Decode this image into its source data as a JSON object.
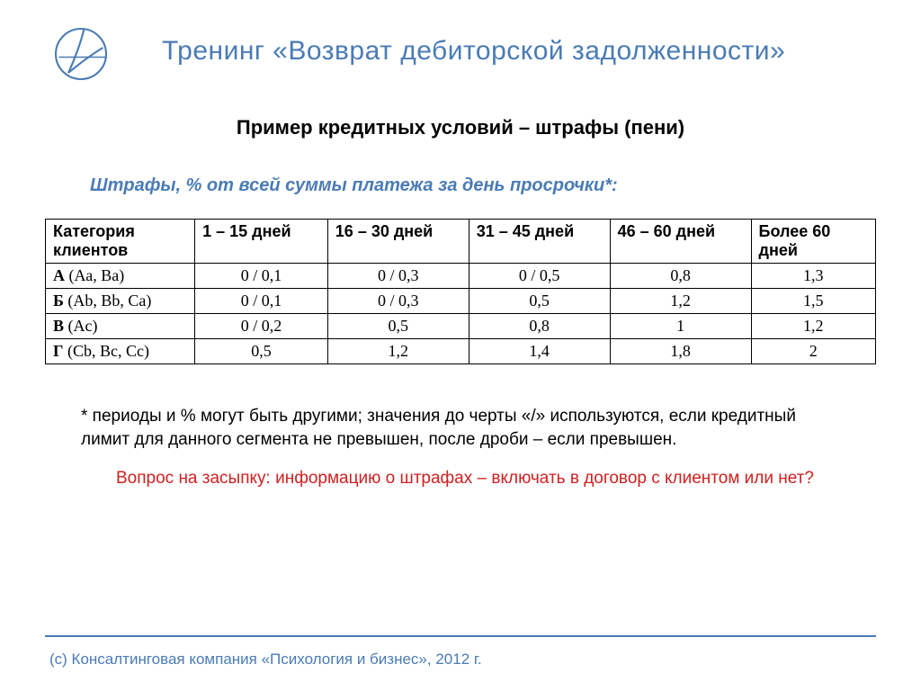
{
  "colors": {
    "accent": "#4a7bb5",
    "question": "#d02020",
    "text": "#000000",
    "border": "#000000",
    "background": "#ffffff"
  },
  "slide": {
    "title": "Тренинг «Возврат дебиторской задолженности»",
    "subtitle": "Пример кредитных условий – штрафы (пени)",
    "table_caption": "Штрафы, % от всей суммы платежа за день просрочки*:"
  },
  "table": {
    "type": "table",
    "columns": [
      "Категория клиентов",
      "1 – 15 дней",
      "16 – 30 дней",
      "31 – 45 дней",
      "46 – 60 дней",
      "Более 60 дней"
    ],
    "col_widths_pct": [
      18,
      16,
      17,
      17,
      17,
      15
    ],
    "rows": [
      {
        "label_bold": "А",
        "label_rest": "  (Аа, Ва)",
        "cells": [
          "0 / 0,1",
          "0 / 0,3",
          "0 / 0,5",
          "0,8",
          "1,3"
        ]
      },
      {
        "label_bold": "Б",
        "label_rest": " (Ab, Bb, Ca)",
        "cells": [
          "0 / 0,1",
          "0 / 0,3",
          "0,5",
          "1,2",
          "1,5"
        ]
      },
      {
        "label_bold": "В",
        "label_rest": " (Ac)",
        "cells": [
          "0 / 0,2",
          "0,5",
          "0,8",
          "1",
          "1,2"
        ]
      },
      {
        "label_bold": "Г",
        "label_rest": " (Cb, Bc, Cc)",
        "cells": [
          "0,5",
          "1,2",
          "1,4",
          "1,8",
          "2"
        ]
      }
    ],
    "font_size": 18,
    "border_color": "#000000"
  },
  "footnote": "* периоды и % могут быть другими; значения до черты «/» используются, если кредитный лимит для данного сегмента не превышен, после дроби – если превышен.",
  "question": "Вопрос на засыпку:  информацию о штрафах – включать в договор с клиентом или нет?",
  "copyright": "(с) Консалтинговая компания «Психология и бизнес»,  2012 г."
}
